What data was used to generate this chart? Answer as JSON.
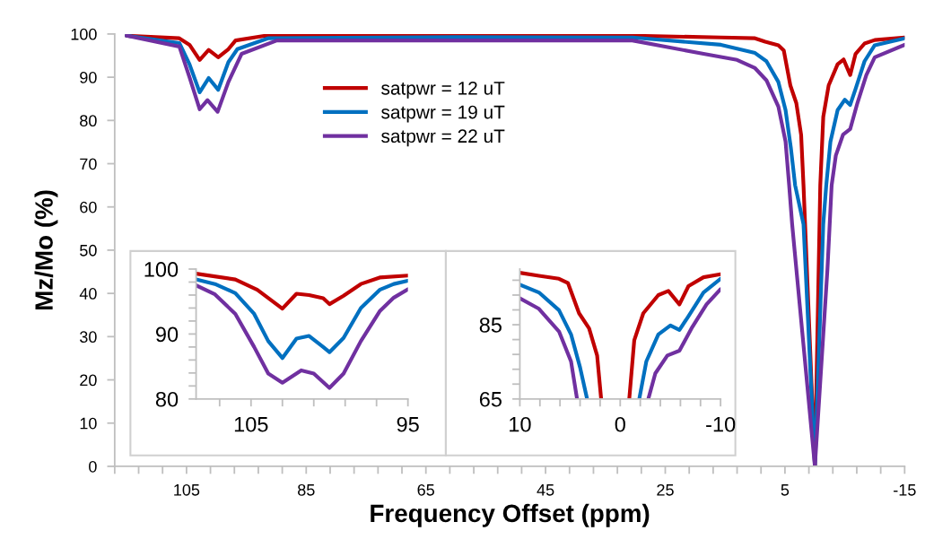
{
  "chart_data": [
    {
      "type": "line",
      "xlabel": "Frequency Offset (ppm)",
      "ylabel": "Mz/Mo (%)",
      "xlim": [
        117,
        -15
      ],
      "ylim": [
        0,
        100
      ],
      "xticks": [
        {
          "value": 117,
          "label": null
        },
        {
          "value": 113,
          "label": null
        },
        {
          "value": 109,
          "label": null
        },
        105,
        {
          "value": 101,
          "label": null
        },
        {
          "value": 97,
          "label": null
        },
        {
          "value": 93,
          "label": null
        },
        {
          "value": 89,
          "label": null
        },
        85,
        {
          "value": 81,
          "label": null
        },
        {
          "value": 77,
          "label": null
        },
        {
          "value": 73,
          "label": null
        },
        {
          "value": 69,
          "label": null
        },
        65,
        {
          "value": 61,
          "label": null
        },
        {
          "value": 57,
          "label": null
        },
        {
          "value": 53,
          "label": null
        },
        {
          "value": 49,
          "label": null
        },
        45,
        {
          "value": 41,
          "label": null
        },
        {
          "value": 37,
          "label": null
        },
        {
          "value": 33,
          "label": null
        },
        {
          "value": 29,
          "label": null
        },
        25,
        {
          "value": 21,
          "label": null
        },
        {
          "value": 17,
          "label": null
        },
        {
          "value": 13,
          "label": null
        },
        {
          "value": 9,
          "label": null
        },
        5,
        {
          "value": 1,
          "label": null
        },
        {
          "value": -3,
          "label": null
        },
        {
          "value": -7,
          "label": null
        },
        {
          "value": -11,
          "label": null
        },
        -15
      ],
      "yticks": [
        0,
        10,
        20,
        30,
        40,
        50,
        60,
        70,
        80,
        90,
        100
      ],
      "legend": "top",
      "grid": false,
      "marker": "none",
      "line_style": "solid",
      "series": [
        {
          "name": "satpwr = 12 uT",
          "color": "#c00000",
          "x": [
            115,
            106.2,
            104.5,
            102.8,
            101.3,
            99.7,
            98,
            96.8,
            91.8,
            60,
            30.5,
            15.7,
            10,
            8.3,
            6.1,
            5.2,
            4.1,
            3.1,
            2.3,
            1.9,
            0,
            -0.9,
            -1.4,
            -2.3,
            -3.8,
            -4.8,
            -5.9,
            -6.8,
            -8.3,
            -10,
            -15
          ],
          "values": [
            99.6,
            99,
            97.5,
            94,
            96.3,
            94.6,
            96.5,
            98.5,
            99.6,
            99.7,
            99.6,
            99.2,
            99,
            98.2,
            97.4,
            96.2,
            88.1,
            84,
            76.7,
            65,
            0,
            65,
            80.8,
            88.1,
            93,
            94.1,
            90.5,
            95.4,
            97.8,
            98.6,
            99.2
          ]
        },
        {
          "name": "satpwr = 19 uT",
          "color": "#0070c0",
          "x": [
            115,
            106.2,
            104.5,
            102.8,
            101.3,
            99.7,
            98,
            96.5,
            91.4,
            60,
            30.5,
            15.7,
            10,
            8.1,
            6.1,
            4.9,
            4,
            3.3,
            1.9,
            0,
            -1.4,
            -1.9,
            -2.6,
            -3.8,
            -5,
            -5.9,
            -6.8,
            -8.3,
            -10,
            -15
          ],
          "values": [
            99.6,
            97.9,
            93,
            86.5,
            89.8,
            87.1,
            93.5,
            96.5,
            99,
            99.3,
            99.2,
            97.5,
            95.6,
            93.7,
            88.9,
            82.4,
            73.5,
            65,
            56,
            0,
            56,
            65,
            75.1,
            82.4,
            84.8,
            83.6,
            87.3,
            93.7,
            97.4,
            99
          ]
        },
        {
          "name": "satpwr = 22 uT",
          "color": "#7030a0",
          "x": [
            115,
            106.2,
            104.5,
            102.8,
            101.5,
            99.8,
            98,
            95.8,
            89.9,
            75,
            30.5,
            18.6,
            13,
            10,
            8.1,
            6.1,
            4.9,
            4.3,
            3.8,
            0,
            -2.1,
            -2.8,
            -3.5,
            -4.7,
            -5.9,
            -7.1,
            -8.6,
            -10,
            -15
          ],
          "values": [
            99.6,
            97.1,
            90,
            82.6,
            84.7,
            82,
            88.9,
            95.4,
            98.5,
            98.5,
            98.5,
            95.4,
            94,
            92.1,
            89.3,
            83.2,
            75.1,
            65,
            56,
            0,
            45.6,
            65,
            71.9,
            76.7,
            78,
            84,
            90.5,
            94.6,
            97.5
          ]
        }
      ]
    },
    {
      "type": "line",
      "xlim": [
        108.5,
        95
      ],
      "ylim": [
        80,
        100
      ],
      "xticks": [
        {
          "value": 107,
          "label": null
        },
        105,
        {
          "value": 103,
          "label": null
        },
        {
          "value": 101,
          "label": null
        },
        {
          "value": 99,
          "label": null
        },
        {
          "value": 97,
          "label": null
        },
        95
      ],
      "yticks": [
        80,
        {
          "value": 82,
          "label": null
        },
        {
          "value": 84,
          "label": null
        },
        {
          "value": 86,
          "label": null
        },
        {
          "value": 88,
          "label": null
        },
        90,
        {
          "value": 92,
          "label": null
        },
        {
          "value": 94,
          "label": null
        },
        {
          "value": 96,
          "label": null
        },
        {
          "value": 98,
          "label": null
        },
        100
      ],
      "grid": false,
      "marker": "none",
      "line_style": "solid",
      "series": [
        {
          "color": "#c00000",
          "x": [
            108.5,
            106,
            104.6,
            103,
            102.1,
            101.3,
            100.4,
            100,
            99.1,
            98,
            96.8,
            95
          ],
          "values": [
            99.3,
            98.4,
            96.8,
            93.9,
            96.2,
            96,
            95.5,
            94.6,
            95.9,
            97.7,
            98.7,
            99
          ]
        },
        {
          "color": "#0070c0",
          "x": [
            108.5,
            107.3,
            106,
            104.8,
            103.9,
            103,
            102.1,
            101.3,
            100.4,
            100,
            99.1,
            98,
            96.8,
            95.9,
            95
          ],
          "values": [
            98.4,
            97.7,
            96.3,
            93.1,
            88.9,
            86.3,
            89.3,
            89.7,
            88,
            87.2,
            89.4,
            94,
            96.8,
            97.7,
            98.2
          ]
        },
        {
          "color": "#7030a0",
          "x": [
            108.5,
            107.3,
            106,
            104.8,
            103.9,
            103,
            101.8,
            101,
            100,
            99.1,
            98,
            96.8,
            95.9,
            95
          ],
          "values": [
            97.5,
            96.1,
            93.1,
            88,
            83.9,
            82.5,
            84.4,
            83.9,
            81.7,
            83.9,
            88.9,
            93.5,
            95.6,
            96.9
          ]
        }
      ]
    },
    {
      "type": "line",
      "xlim": [
        10,
        -10
      ],
      "ylim": [
        65,
        100
      ],
      "xticks": [
        10,
        {
          "value": 8,
          "label": null
        },
        {
          "value": 6,
          "label": null
        },
        {
          "value": 4,
          "label": null
        },
        {
          "value": 2,
          "label": null
        },
        0,
        {
          "value": -2,
          "label": null
        },
        {
          "value": -4,
          "label": null
        },
        {
          "value": -6,
          "label": null
        },
        {
          "value": -8,
          "label": null
        },
        -10
      ],
      "yticks": [
        65,
        {
          "value": 69,
          "label": null
        },
        {
          "value": 73,
          "label": null
        },
        {
          "value": 77,
          "label": null
        },
        {
          "value": 81,
          "label": null
        },
        85,
        {
          "value": 89,
          "label": null
        },
        {
          "value": 93,
          "label": null
        },
        {
          "value": 97,
          "label": null
        }
      ],
      "grid": false,
      "marker": "none",
      "line_style": "solid",
      "series": [
        {
          "color": "#c00000",
          "x": [
            10,
            8.1,
            6.1,
            5.2,
            4.1,
            3.1,
            2.3,
            1.9,
            0.5,
            -0.9,
            -1.4,
            -2.3,
            -3.8,
            -4.8,
            -5.9,
            -6.8,
            -8.3,
            -10
          ],
          "values": [
            99,
            98.2,
            97.4,
            96.2,
            88.1,
            84,
            76.7,
            65,
            null,
            65,
            80.8,
            88.1,
            93,
            94.1,
            90.5,
            95.4,
            97.8,
            98.6
          ]
        },
        {
          "color": "#0070c0",
          "x": [
            10,
            8.1,
            6.1,
            4.9,
            4,
            3.3,
            0,
            -1.9,
            -2.6,
            -3.8,
            -5,
            -5.9,
            -6.8,
            -8.3,
            -10
          ],
          "values": [
            95.8,
            93.7,
            88.9,
            82.4,
            73.5,
            65,
            null,
            65,
            75.1,
            82.4,
            84.8,
            83.6,
            87.3,
            93.7,
            97.4
          ]
        },
        {
          "color": "#7030a0",
          "x": [
            10,
            8.1,
            6.1,
            4.9,
            4.3,
            0,
            -2.8,
            -3.5,
            -4.7,
            -5.9,
            -7.1,
            -8.6,
            -10
          ],
          "values": [
            92.1,
            89.3,
            83.2,
            75.1,
            65,
            null,
            65,
            71.9,
            76.7,
            78,
            84,
            90.5,
            94.6
          ]
        }
      ]
    }
  ]
}
